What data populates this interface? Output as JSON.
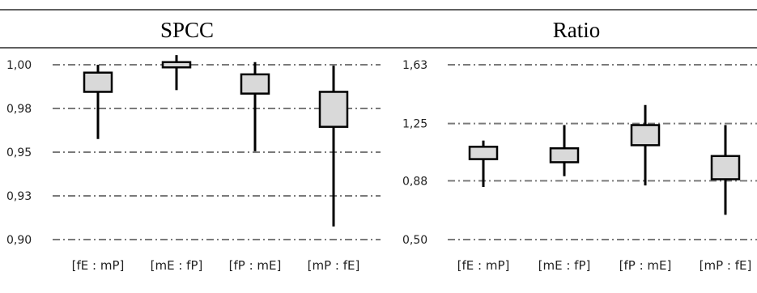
{
  "chart_data": [
    {
      "type": "box",
      "title": "SPCC",
      "categories": [
        "[fE : mP]",
        "[mE : fP]",
        "[fP : mE]",
        "[mP : fE]"
      ],
      "ylim": [
        0.9,
        1.0
      ],
      "yticks": [
        0.9,
        0.925,
        0.95,
        0.975,
        1.0
      ],
      "ytick_labels": [
        "0,90",
        "0,93",
        "0,95",
        "0,98",
        "1,00"
      ],
      "grid": "dash-dot horizontal",
      "boxes": [
        {
          "category": "[fE : mP]",
          "min": 0.9575,
          "q1": 0.9845,
          "q3": 0.9955,
          "max": 1.0
        },
        {
          "category": "[mE : fP]",
          "min": 0.9855,
          "q1": 0.9985,
          "q3": 1.0015,
          "max": 1.0055
        },
        {
          "category": "[fP : mE]",
          "min": 0.9505,
          "q1": 0.9835,
          "q3": 0.9945,
          "max": 1.0015
        },
        {
          "category": "[mP : fE]",
          "min": 0.9075,
          "q1": 0.9645,
          "q3": 0.9845,
          "max": 0.9995
        }
      ]
    },
    {
      "type": "box",
      "title": "Ratio",
      "categories": [
        "[fE : mP]",
        "[mE : fP]",
        "[fP : mE]",
        "[mP : fE]"
      ],
      "ylim": [
        0.5,
        1.63
      ],
      "yticks": [
        0.5,
        0.88,
        1.25,
        1.63
      ],
      "ytick_labels": [
        "0,50",
        "0,88",
        "1,25",
        "1,63"
      ],
      "grid": "dash-dot horizontal",
      "boxes": [
        {
          "category": "[fE : mP]",
          "min": 0.84,
          "q1": 1.02,
          "q3": 1.1,
          "max": 1.14
        },
        {
          "category": "[mE : fP]",
          "min": 0.91,
          "q1": 1.0,
          "q3": 1.09,
          "max": 1.24
        },
        {
          "category": "[fP : mE]",
          "min": 0.85,
          "q1": 1.11,
          "q3": 1.24,
          "max": 1.37
        },
        {
          "category": "[mP : fE]",
          "min": 0.66,
          "q1": 0.89,
          "q3": 1.04,
          "max": 1.24
        }
      ]
    }
  ]
}
